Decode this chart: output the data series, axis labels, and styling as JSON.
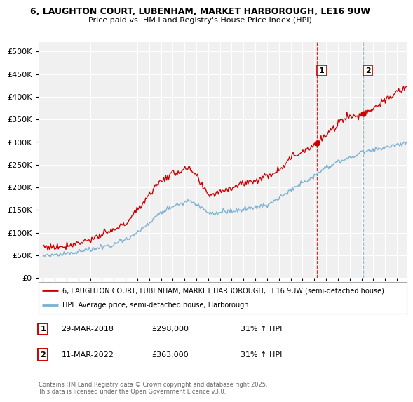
{
  "title1": "6, LAUGHTON COURT, LUBENHAM, MARKET HARBOROUGH, LE16 9UW",
  "title2": "Price paid vs. HM Land Registry's House Price Index (HPI)",
  "background_color": "#ffffff",
  "plot_bg_color": "#f0f0f0",
  "red_color": "#cc0000",
  "blue_color": "#7ab0d4",
  "sale1_date_label": "29-MAR-2018",
  "sale1_price": 298000,
  "sale1_hpi": "31% ↑ HPI",
  "sale2_date_label": "11-MAR-2022",
  "sale2_price": 363000,
  "sale2_hpi": "31% ↑ HPI",
  "legend1": "6, LAUGHTON COURT, LUBENHAM, MARKET HARBOROUGH, LE16 9UW (semi-detached house)",
  "legend2": "HPI: Average price, semi-detached house, Harborough",
  "footer": "Contains HM Land Registry data © Crown copyright and database right 2025.\nThis data is licensed under the Open Government Licence v3.0.",
  "ylim": [
    0,
    520000
  ],
  "yticks": [
    0,
    50000,
    100000,
    150000,
    200000,
    250000,
    300000,
    350000,
    400000,
    450000,
    500000
  ],
  "sale1_x": 2018.25,
  "sale2_x": 2022.17,
  "xlim_left": 1994.6,
  "xlim_right": 2025.8,
  "red_key_x": [
    1995,
    1996,
    1997,
    1998,
    1999,
    2000,
    2001,
    2002,
    2003,
    2004,
    2005,
    2006,
    2007,
    2007.5,
    2008,
    2008.5,
    2009,
    2009.5,
    2010,
    2011,
    2012,
    2013,
    2014,
    2015,
    2016,
    2017,
    2018.25,
    2019,
    2019.5,
    2020,
    2020.5,
    2021,
    2021.5,
    2022.17,
    2022.5,
    2023,
    2023.5,
    2024,
    2024.5,
    2025,
    2025.8
  ],
  "red_key_y": [
    70000,
    68000,
    72000,
    78000,
    85000,
    95000,
    105000,
    120000,
    150000,
    185000,
    215000,
    230000,
    240000,
    238000,
    225000,
    200000,
    185000,
    185000,
    192000,
    200000,
    210000,
    215000,
    225000,
    240000,
    265000,
    280000,
    298000,
    315000,
    325000,
    340000,
    355000,
    358000,
    355000,
    363000,
    368000,
    375000,
    385000,
    390000,
    400000,
    410000,
    420000
  ],
  "blue_key_x": [
    1995,
    1996,
    1997,
    1998,
    1999,
    2000,
    2001,
    2002,
    2003,
    2004,
    2005,
    2006,
    2007,
    2007.5,
    2008,
    2008.5,
    2009,
    2009.5,
    2010,
    2011,
    2012,
    2013,
    2014,
    2015,
    2016,
    2017,
    2018,
    2019,
    2019.5,
    2020,
    2020.5,
    2021,
    2021.5,
    2022,
    2022.5,
    2023,
    2023.5,
    2024,
    2024.5,
    2025,
    2025.8
  ],
  "blue_key_y": [
    50000,
    50000,
    54000,
    58000,
    62000,
    68000,
    75000,
    85000,
    100000,
    120000,
    145000,
    158000,
    168000,
    170000,
    162000,
    155000,
    145000,
    142000,
    145000,
    148000,
    150000,
    155000,
    162000,
    175000,
    195000,
    210000,
    225000,
    245000,
    250000,
    255000,
    258000,
    268000,
    270000,
    278000,
    280000,
    282000,
    285000,
    288000,
    290000,
    295000,
    300000
  ]
}
